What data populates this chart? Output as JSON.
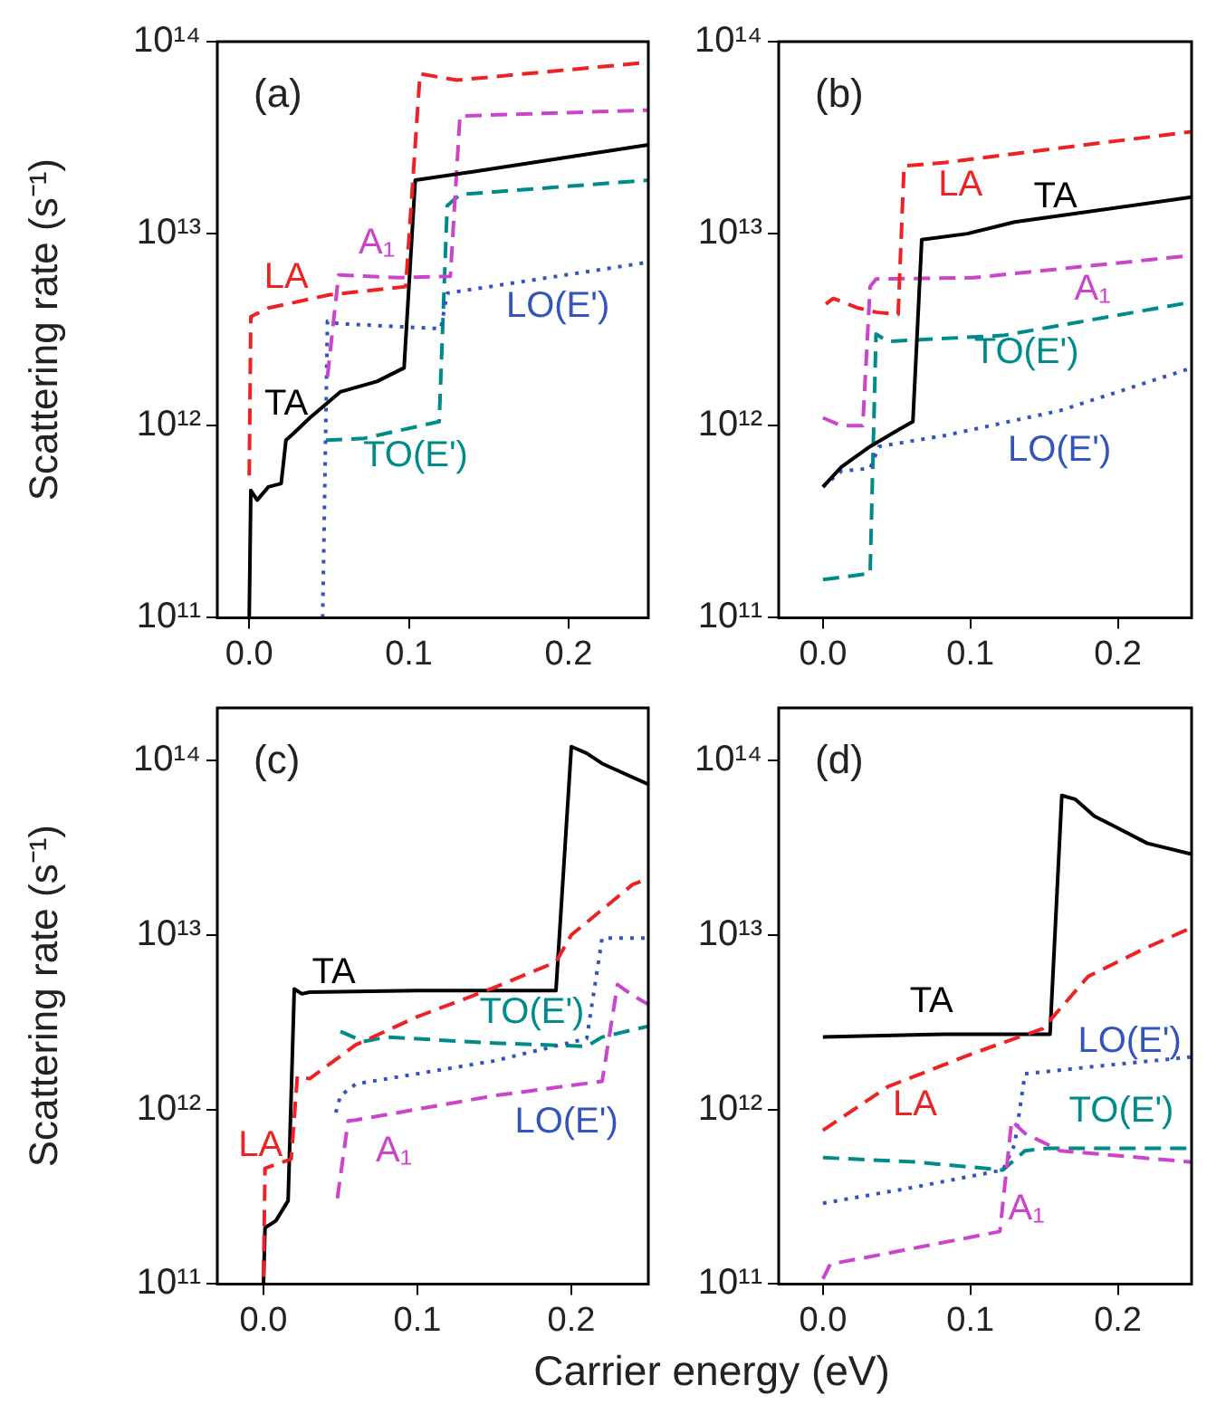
{
  "chart_data": [
    {
      "type": "line",
      "title": "(a)",
      "ylabel": "Scattering rate (s⁻¹)",
      "log": "y",
      "grid": false,
      "legend": false,
      "xlim": [
        -0.02,
        0.25
      ],
      "xticks": [
        {
          "value": 0,
          "label": "0.0"
        },
        {
          "value": 0.1,
          "label": "0.1"
        },
        {
          "value": 0.2,
          "label": "0.2"
        }
      ],
      "ylim": [
        100000000000.0,
        100000000000000.0
      ],
      "yticks": [
        {
          "value": 100000000000.0,
          "label": "10¹¹"
        },
        {
          "value": 1000000000000.0,
          "label": "10¹²"
        },
        {
          "value": 10000000000000.0,
          "label": "10¹³"
        },
        {
          "value": 100000000000000.0,
          "label": "10¹⁴"
        }
      ],
      "series": [
        {
          "name": "LA",
          "color": "#ee2222",
          "line_style": "dashed",
          "x": [
            0,
            0.001,
            0.012,
            0.05,
            0.098,
            0.107,
            0.13,
            0.25
          ],
          "values": [
            550000000000.0,
            3700000000000.0,
            4100000000000.0,
            4800000000000.0,
            5300000000000.0,
            68000000000000.0,
            63000000000000.0,
            78000000000000.0
          ]
        },
        {
          "name": "TA",
          "color": "#000000",
          "line_style": "solid",
          "x": [
            0,
            0.001,
            0.005,
            0.012,
            0.02,
            0.023,
            0.027,
            0.038,
            0.057,
            0.08,
            0.097,
            0.104,
            0.14,
            0.25
          ],
          "values": [
            100000000000.0,
            460000000000.0,
            410000000000.0,
            480000000000.0,
            500000000000.0,
            840000000000.0,
            900000000000.0,
            1100000000000.0,
            1500000000000.0,
            1700000000000.0,
            2000000000000.0,
            19000000000000.0,
            21000000000000.0,
            29000000000000.0
          ]
        },
        {
          "name": "A₁",
          "color": "#cc44cc",
          "line_style": "dashed",
          "x": [
            0.049,
            0.056,
            0.094,
            0.126,
            0.132,
            0.25
          ],
          "values": [
            1800000000000.0,
            6100000000000.0,
            5900000000000.0,
            6000000000000.0,
            41000000000000.0,
            44000000000000.0
          ]
        },
        {
          "name": "LO(E')",
          "color": "#3355bb",
          "line_style": "dotted",
          "x": [
            0.046,
            0.049,
            0.056,
            0.12,
            0.124,
            0.25
          ],
          "values": [
            100000000000.0,
            3500000000000.0,
            3400000000000.0,
            3200000000000.0,
            4900000000000.0,
            7100000000000.0
          ]
        },
        {
          "name": "TO(E')",
          "color": "#008b8b",
          "line_style": "dashed",
          "x": [
            0.048,
            0.072,
            0.119,
            0.124,
            0.132,
            0.25
          ],
          "values": [
            840000000000.0,
            860000000000.0,
            1050000000000.0,
            14000000000000.0,
            16000000000000.0,
            19000000000000.0
          ]
        }
      ]
    },
    {
      "type": "line",
      "title": "(b)",
      "log": "y",
      "grid": false,
      "legend": false,
      "xlim": [
        -0.03,
        0.25
      ],
      "xticks": [
        {
          "value": 0,
          "label": "0.0"
        },
        {
          "value": 0.1,
          "label": "0.1"
        },
        {
          "value": 0.2,
          "label": "0.2"
        }
      ],
      "ylim": [
        100000000000.0,
        100000000000000.0
      ],
      "yticks": [
        {
          "value": 100000000000.0,
          "label": "10¹¹"
        },
        {
          "value": 1000000000000.0,
          "label": "10¹²"
        },
        {
          "value": 10000000000000.0,
          "label": "10¹³"
        },
        {
          "value": 100000000000000.0,
          "label": "10¹⁴"
        }
      ],
      "series": [
        {
          "name": "LA",
          "color": "#ee2222",
          "line_style": "dashed",
          "x": [
            0.002,
            0.007,
            0.024,
            0.036,
            0.051,
            0.055,
            0.083,
            0.25
          ],
          "values": [
            4300000000000.0,
            4600000000000.0,
            4100000000000.0,
            3900000000000.0,
            3800000000000.0,
            22500000000000.0,
            23500000000000.0,
            34000000000000.0
          ]
        },
        {
          "name": "TA",
          "color": "#000000",
          "line_style": "solid",
          "x": [
            0,
            0.0125,
            0.032,
            0.052,
            0.061,
            0.067,
            0.098,
            0.13,
            0.25
          ],
          "values": [
            480000000000.0,
            610000000000.0,
            780000000000.0,
            960000000000.0,
            1050000000000.0,
            9300000000000.0,
            10000000000000.0,
            11500000000000.0,
            15500000000000.0
          ]
        },
        {
          "name": "A₁",
          "color": "#cc44cc",
          "line_style": "dashed",
          "x": [
            0,
            0.0125,
            0.027,
            0.032,
            0.036,
            0.102,
            0.25
          ],
          "values": [
            1100000000000.0,
            1000000000000.0,
            1000000000000.0,
            5300000000000.0,
            5800000000000.0,
            5900000000000.0,
            7700000000000.0
          ]
        },
        {
          "name": "LO(E')",
          "color": "#3355bb",
          "line_style": "dotted",
          "x": [
            0,
            0.0125,
            0.032,
            0.038,
            0.083,
            0.161,
            0.25
          ],
          "values": [
            480000000000.0,
            580000000000.0,
            600000000000.0,
            780000000000.0,
            890000000000.0,
            1200000000000.0,
            2000000000000.0
          ]
        },
        {
          "name": "TO(E')",
          "color": "#008b8b",
          "line_style": "dashed",
          "x": [
            0,
            0.032,
            0.036,
            0.044,
            0.122,
            0.25
          ],
          "values": [
            158000000000.0,
            170000000000.0,
            3000000000000.0,
            2750000000000.0,
            2950000000000.0,
            4400000000000.0
          ]
        }
      ]
    },
    {
      "type": "line",
      "title": "(c)",
      "ylabel": "Scattering rate (s⁻¹)",
      "xlabel": "Carrier energy (eV)",
      "log": "y",
      "grid": false,
      "legend": false,
      "xlim": [
        -0.03,
        0.25
      ],
      "xticks": [
        {
          "value": 0,
          "label": "0.0"
        },
        {
          "value": 0.1,
          "label": "0.1"
        },
        {
          "value": 0.2,
          "label": "0.2"
        }
      ],
      "ylim": [
        100000000000.0,
        200000000000000.0
      ],
      "yticks": [
        {
          "value": 100000000000.0,
          "label": "10¹¹"
        },
        {
          "value": 1000000000000.0,
          "label": "10¹²"
        },
        {
          "value": 10000000000000.0,
          "label": "10¹³"
        },
        {
          "value": 100000000000000.0,
          "label": "10¹⁴"
        }
      ],
      "series": [
        {
          "name": "LA",
          "color": "#ee2222",
          "line_style": "dashed",
          "x": [
            0,
            0.001,
            0.018,
            0.022,
            0.03,
            0.06,
            0.1,
            0.15,
            0.19,
            0.2,
            0.24,
            0.25
          ],
          "values": [
            110000000000.0,
            460000000000.0,
            520000000000.0,
            1550000000000.0,
            1500000000000.0,
            2350000000000.0,
            3400000000000.0,
            5000000000000.0,
            7000000000000.0,
            10000000000000.0,
            19500000000000.0,
            21000000000000.0
          ]
        },
        {
          "name": "TA",
          "color": "#000000",
          "line_style": "solid",
          "x": [
            0,
            0.001,
            0.008,
            0.016,
            0.02,
            0.025,
            0.03,
            0.1,
            0.19,
            0.2,
            0.21,
            0.22,
            0.25
          ],
          "values": [
            100000000000.0,
            210000000000.0,
            230000000000.0,
            300000000000.0,
            4900000000000.0,
            4600000000000.0,
            4700000000000.0,
            4800000000000.0,
            4800000000000.0,
            120000000000000.0,
            110000000000000.0,
            96000000000000.0,
            73000000000000.0
          ]
        },
        {
          "name": "A₁",
          "color": "#cc44cc",
          "line_style": "dashed",
          "x": [
            0.048,
            0.055,
            0.06,
            0.15,
            0.22,
            0.23,
            0.24,
            0.25
          ],
          "values": [
            310000000000.0,
            860000000000.0,
            870000000000.0,
            1200000000000.0,
            1450000000000.0,
            5200000000000.0,
            4500000000000.0,
            4000000000000.0
          ]
        },
        {
          "name": "LO(E')",
          "color": "#3355bb",
          "line_style": "dotted",
          "x": [
            0.047,
            0.05,
            0.06,
            0.15,
            0.21,
            0.22,
            0.25
          ],
          "values": [
            960000000000.0,
            1200000000000.0,
            1400000000000.0,
            1900000000000.0,
            2550000000000.0,
            9600000000000.0,
            9600000000000.0
          ]
        },
        {
          "name": "TO(E')",
          "color": "#008b8b",
          "line_style": "dashed",
          "x": [
            0.05,
            0.065,
            0.08,
            0.15,
            0.21,
            0.22,
            0.25
          ],
          "values": [
            2800000000000.0,
            2450000000000.0,
            2600000000000.0,
            2400000000000.0,
            2300000000000.0,
            2600000000000.0,
            3000000000000.0
          ]
        }
      ]
    },
    {
      "type": "line",
      "title": "(d)",
      "log": "y",
      "grid": false,
      "legend": false,
      "xlim": [
        -0.03,
        0.25
      ],
      "xticks": [
        {
          "value": 0,
          "label": "0.0"
        },
        {
          "value": 0.1,
          "label": "0.1"
        },
        {
          "value": 0.2,
          "label": "0.2"
        }
      ],
      "ylim": [
        100000000000.0,
        200000000000000.0
      ],
      "yticks": [
        {
          "value": 100000000000.0,
          "label": "10¹¹"
        },
        {
          "value": 1000000000000.0,
          "label": "10¹²"
        },
        {
          "value": 10000000000000.0,
          "label": "10¹³"
        },
        {
          "value": 100000000000000.0,
          "label": "10¹⁴"
        }
      ],
      "series": [
        {
          "name": "LA",
          "color": "#ee2222",
          "line_style": "dashed",
          "x": [
            0,
            0.044,
            0.102,
            0.149,
            0.18,
            0.22,
            0.25
          ],
          "values": [
            760000000000.0,
            1350000000000.0,
            2100000000000.0,
            2900000000000.0,
            5800000000000.0,
            8500000000000.0,
            11000000000000.0
          ]
        },
        {
          "name": "TA",
          "color": "#000000",
          "line_style": "solid",
          "x": [
            0,
            0.083,
            0.154,
            0.162,
            0.171,
            0.184,
            0.2,
            0.22,
            0.25
          ],
          "values": [
            2600000000000.0,
            2700000000000.0,
            2700000000000.0,
            63000000000000.0,
            60000000000000.0,
            48000000000000.0,
            41000000000000.0,
            33500000000000.0,
            29000000000000.0
          ]
        },
        {
          "name": "A₁",
          "color": "#cc44cc",
          "line_style": "dashed",
          "x": [
            0,
            0.005,
            0.044,
            0.12,
            0.128,
            0.137,
            0.161,
            0.25
          ],
          "values": [
            107000000000.0,
            130000000000.0,
            150000000000.0,
            200000000000.0,
            860000000000.0,
            730000000000.0,
            580000000000.0,
            500000000000.0
          ]
        },
        {
          "name": "LO(E')",
          "color": "#3355bb",
          "line_style": "dotted",
          "x": [
            0,
            0.063,
            0.122,
            0.13,
            0.137,
            0.18,
            0.25
          ],
          "values": [
            290000000000.0,
            360000000000.0,
            450000000000.0,
            630000000000.0,
            1600000000000.0,
            1750000000000.0,
            2000000000000.0
          ]
        },
        {
          "name": "TO(E')",
          "color": "#008b8b",
          "line_style": "dashed",
          "x": [
            0,
            0.063,
            0.122,
            0.137,
            0.153,
            0.25
          ],
          "values": [
            530000000000.0,
            500000000000.0,
            450000000000.0,
            580000000000.0,
            600000000000.0,
            600000000000.0
          ]
        }
      ]
    }
  ]
}
